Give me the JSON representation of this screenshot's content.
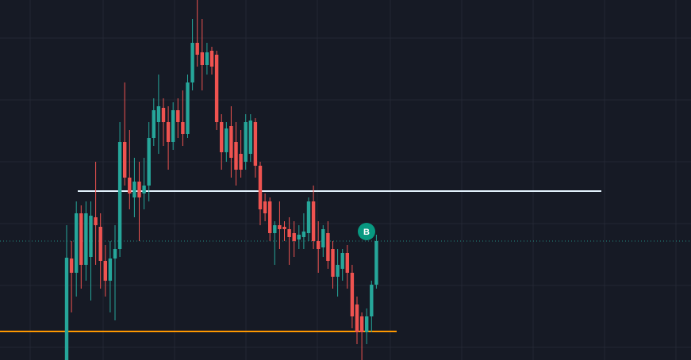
{
  "chart_data": {
    "type": "candlestick",
    "ylim": [
      0,
      454
    ],
    "up_color": "#26a69a",
    "down_color": "#ef5350",
    "grid": true,
    "open": [
      0,
      128,
      110,
      185,
      120,
      130,
      180,
      168,
      125,
      100,
      128,
      140,
      275,
      230,
      205,
      225,
      210,
      220,
      280,
      300,
      318,
      300,
      275,
      315,
      300,
      285,
      350,
      400,
      388,
      372,
      390,
      385,
      300,
      262,
      295,
      275,
      260,
      250,
      260,
      300,
      245,
      200,
      200,
      160,
      170,
      168,
      165,
      160,
      152,
      155,
      160,
      200,
      150,
      142,
      160,
      140,
      105,
      115,
      135,
      110,
      70,
      55,
      35,
      55,
      95
    ],
    "high": [
      170,
      150,
      200,
      195,
      200,
      200,
      250,
      185,
      145,
      150,
      170,
      300,
      350,
      290,
      255,
      250,
      255,
      300,
      330,
      360,
      330,
      320,
      325,
      330,
      340,
      360,
      430,
      454,
      430,
      400,
      395,
      390,
      310,
      300,
      320,
      300,
      290,
      310,
      310,
      305,
      250,
      210,
      205,
      175,
      200,
      175,
      180,
      175,
      170,
      185,
      205,
      220,
      175,
      170,
      175,
      150,
      140,
      140,
      145,
      120,
      80,
      60,
      65,
      100,
      158
    ],
    "low": [
      0,
      60,
      80,
      90,
      100,
      75,
      120,
      90,
      80,
      60,
      50,
      130,
      220,
      190,
      180,
      150,
      190,
      200,
      270,
      260,
      270,
      240,
      265,
      280,
      270,
      280,
      340,
      370,
      340,
      360,
      360,
      290,
      240,
      250,
      230,
      220,
      230,
      240,
      250,
      230,
      170,
      175,
      150,
      120,
      140,
      150,
      120,
      130,
      140,
      140,
      150,
      140,
      110,
      130,
      115,
      90,
      80,
      100,
      90,
      40,
      20,
      0,
      20,
      35,
      90
    ],
    "close": [
      129,
      110,
      185,
      120,
      185,
      182,
      170,
      125,
      100,
      128,
      140,
      275,
      230,
      210,
      225,
      205,
      220,
      280,
      315,
      320,
      300,
      275,
      315,
      300,
      285,
      350,
      400,
      385,
      372,
      388,
      370,
      300,
      262,
      292,
      255,
      240,
      240,
      300,
      302,
      245,
      190,
      185,
      160,
      170,
      165,
      165,
      155,
      150,
      158,
      162,
      200,
      150,
      140,
      165,
      125,
      105,
      120,
      135,
      110,
      55,
      35,
      35,
      55,
      95,
      150
    ],
    "levels": [
      {
        "value": 213,
        "color": "#e3f2fd",
        "style": "solid"
      },
      {
        "value": 36,
        "color": "#ff9800",
        "style": "solid"
      },
      {
        "value": 150,
        "color": "#26a69a",
        "style": "dotted"
      }
    ],
    "marker": {
      "text": "B",
      "color": "#089981"
    }
  }
}
